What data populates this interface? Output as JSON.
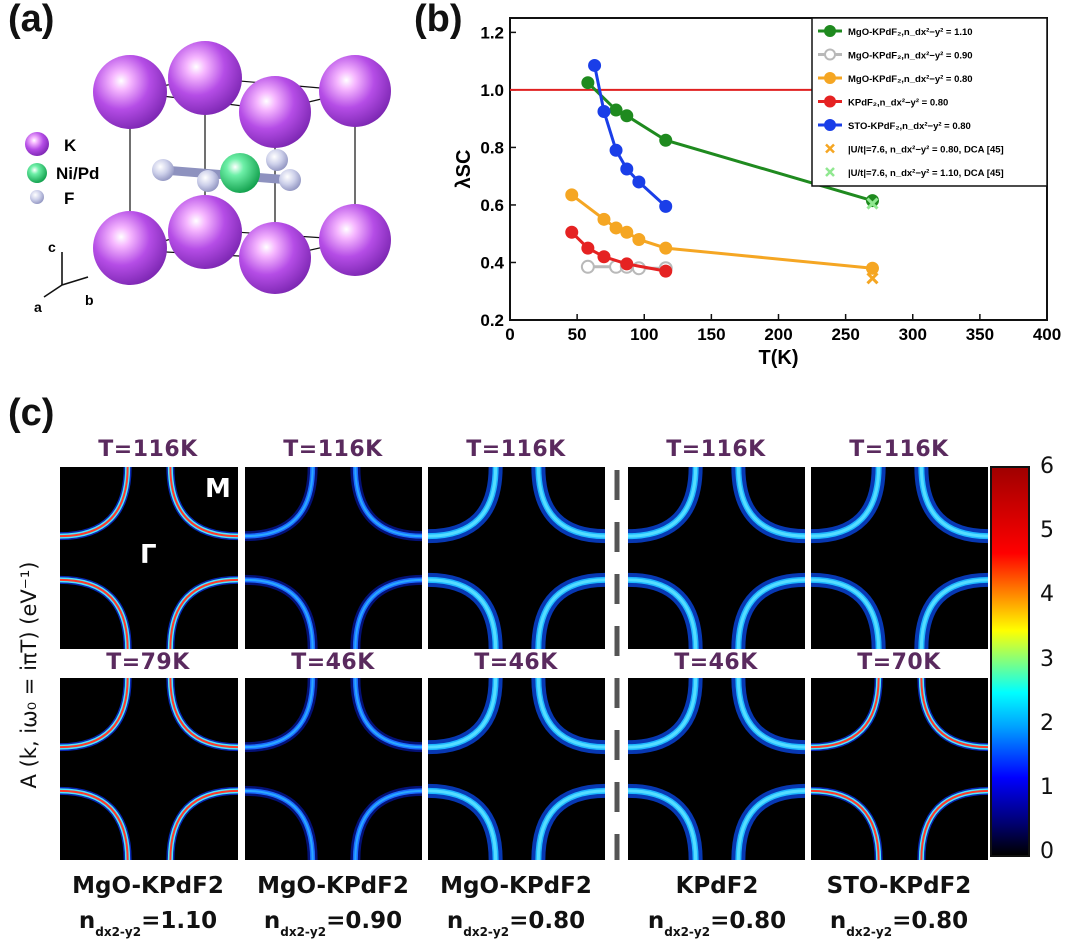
{
  "panel_labels": {
    "a": "(a)",
    "b": "(b)",
    "c": "(c)"
  },
  "crystal": {
    "legend": [
      {
        "label": "K",
        "color": "#a64ee0"
      },
      {
        "label": "Ni/Pd",
        "color": "#22dd77"
      },
      {
        "label": "F",
        "color": "#c8cbe6"
      }
    ],
    "axes": {
      "c": "c",
      "a": "a",
      "b": "b"
    }
  },
  "chart_data": {
    "type": "line",
    "xlabel": "T(K)",
    "ylabel": "λSC",
    "xlim": [
      0,
      400
    ],
    "ylim": [
      0.2,
      1.25
    ],
    "xticks": [
      0,
      50,
      100,
      150,
      200,
      250,
      300,
      350,
      400
    ],
    "yticks": [
      0.2,
      0.4,
      0.6,
      0.8,
      1.0,
      1.2
    ],
    "hline": {
      "y": 1.0,
      "color": "#e02020"
    },
    "series": [
      {
        "name": "MgO-KPdF2, n = 1.10",
        "color": "#1f8a1f",
        "x": [
          58,
          79,
          87,
          116,
          270
        ],
        "y": [
          1.025,
          0.93,
          0.91,
          0.825,
          0.615
        ]
      },
      {
        "name": "MgO-KPdF2, n = 0.90",
        "color": "#b9b9b9",
        "open": true,
        "x": [
          58,
          79,
          87,
          96,
          116
        ],
        "y": [
          0.385,
          0.385,
          0.385,
          0.38,
          0.38
        ]
      },
      {
        "name": "MgO-KPdF2, n = 0.80",
        "color": "#f5a623",
        "x": [
          46,
          70,
          79,
          87,
          96,
          116,
          270
        ],
        "y": [
          0.635,
          0.55,
          0.52,
          0.505,
          0.48,
          0.45,
          0.38
        ]
      },
      {
        "name": "KPdF2, n = 0.80",
        "color": "#e52222",
        "x": [
          46,
          58,
          70,
          87,
          116
        ],
        "y": [
          0.505,
          0.45,
          0.42,
          0.395,
          0.37
        ]
      },
      {
        "name": "STO-KPdF2, n = 0.80",
        "color": "#1a3ee8",
        "x": [
          63,
          70,
          79,
          87,
          96,
          116
        ],
        "y": [
          1.085,
          0.925,
          0.79,
          0.725,
          0.68,
          0.595
        ]
      }
    ],
    "crosses": [
      {
        "name": "|U/t|=7.6, n = 0.80, DCA [45]",
        "color": "#f5a623",
        "x": [
          270
        ],
        "y": [
          0.345
        ]
      },
      {
        "name": "|U/t|=7.6, n = 1.10, DCA [45]",
        "color": "#90e890",
        "x": [
          270
        ],
        "y": [
          0.605
        ]
      }
    ],
    "legend_labels": [
      "MgO-KPdF₂,n_dx²−y² = 1.10",
      "MgO-KPdF₂,n_dx²−y² = 0.90",
      "MgO-KPdF₂,n_dx²−y² = 0.80",
      "KPdF₂,n_dx²−y² = 0.80",
      "STO-KPdF₂,n_dx²−y² = 0.80",
      "|U/t|=7.6, n_dx²−y² = 0.80, DCA  [45]",
      "|U/t|=7.6, n_dx²−y² = 1.10, DCA  [45]"
    ]
  },
  "spectral": {
    "ylabel": "A (k, iω₀ = iπT) (eV⁻¹)",
    "M_label": "M",
    "G_label": "Γ",
    "top_temps": [
      "T=116K",
      "T=116K",
      "T=116K",
      "T=116K",
      "T=116K"
    ],
    "bottom_temps": [
      "T=79K",
      "T=46K",
      "T=46K",
      "T=46K",
      "T=70K"
    ],
    "materials": [
      "MgO-KPdF2",
      "MgO-KPdF2",
      "MgO-KPdF2",
      "KPdF2",
      "STO-KPdF2"
    ],
    "fillings": [
      "=1.10",
      "=0.90",
      "=0.80",
      "=0.80",
      "=0.80"
    ],
    "n_symbol": "n",
    "n_sub": "dx2-y2",
    "colorbar_ticks": [
      "6",
      "5",
      "4",
      "3",
      "2",
      "1",
      "0"
    ]
  }
}
